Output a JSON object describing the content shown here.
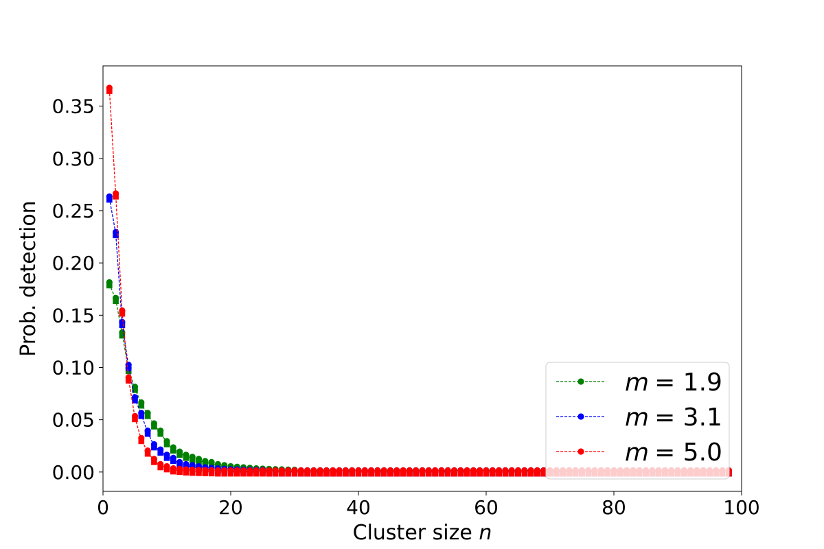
{
  "chart_data": {
    "type": "line",
    "xlabel": "Cluster size",
    "xlabel_var": "n",
    "ylabel": "Prob. detection",
    "xlim": [
      0,
      100
    ],
    "ylim": [
      -0.0185,
      0.3885
    ],
    "xticks": [
      0,
      20,
      40,
      60,
      80,
      100
    ],
    "yticks": [
      0.0,
      0.05,
      0.1,
      0.15,
      0.2,
      0.25,
      0.3,
      0.35
    ],
    "xtick_labels": [
      "0",
      "20",
      "40",
      "60",
      "80",
      "100"
    ],
    "ytick_labels": [
      "0.00",
      "0.05",
      "0.10",
      "0.15",
      "0.20",
      "0.25",
      "0.30",
      "0.35"
    ],
    "grid": false,
    "legend_position": "lower-right",
    "x_max_point": 98,
    "series": [
      {
        "name": "m = 1.9",
        "legend_var": "m",
        "legend_value": "= 1.9",
        "color": "#008000",
        "line_style": "dashed",
        "markers": [
          "circle",
          "square"
        ],
        "values": [
          0.18,
          0.165,
          0.132,
          0.098,
          0.08,
          0.065,
          0.055,
          0.045,
          0.038,
          0.028,
          0.022,
          0.018,
          0.015,
          0.013,
          0.011,
          0.009,
          0.008,
          0.006,
          0.005,
          0.004,
          0.0035,
          0.003,
          0.0025,
          0.002,
          0.0017,
          0.0014,
          0.0012,
          0.001,
          0.0008,
          0.0006
        ]
      },
      {
        "name": "m = 3.1",
        "legend_var": "m",
        "legend_value": "= 3.1",
        "color": "#0000ff",
        "line_style": "dashed",
        "markers": [
          "circle",
          "square"
        ],
        "values": [
          0.262,
          0.228,
          0.142,
          0.101,
          0.07,
          0.055,
          0.038,
          0.025,
          0.02,
          0.015,
          0.012,
          0.008,
          0.006,
          0.005,
          0.004,
          0.003,
          0.0025,
          0.002,
          0.0015,
          0.0012,
          0.001,
          0.0008,
          0.0006,
          0.0005,
          0.0004
        ]
      },
      {
        "name": "m = 5.0",
        "legend_var": "m",
        "legend_value": "= 5.0",
        "color": "#ff0000",
        "line_style": "dashed",
        "markers": [
          "circle",
          "square"
        ],
        "values": [
          0.366,
          0.265,
          0.153,
          0.089,
          0.052,
          0.031,
          0.019,
          0.011,
          0.006,
          0.004,
          0.002,
          0.0015,
          0.001,
          0.0007,
          0.0005,
          0.0003,
          0.0002
        ]
      }
    ]
  }
}
